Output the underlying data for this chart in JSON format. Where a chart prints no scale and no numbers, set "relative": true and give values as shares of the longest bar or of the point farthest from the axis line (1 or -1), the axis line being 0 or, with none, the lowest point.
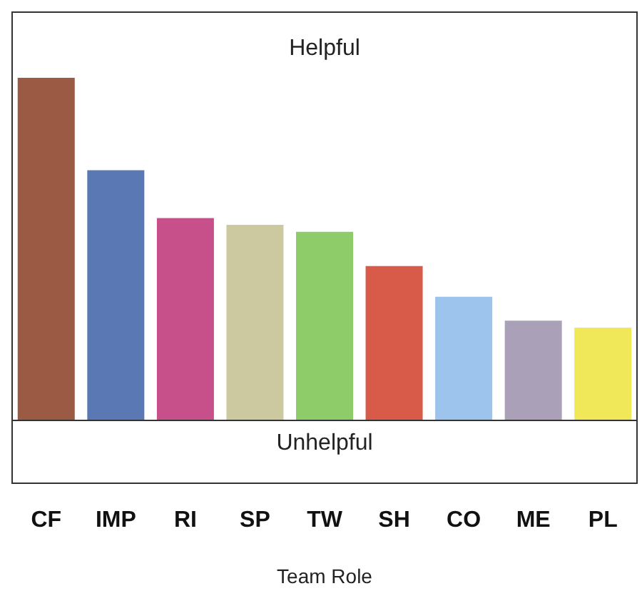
{
  "chart_data": {
    "type": "bar",
    "xlabel": "Team Role",
    "relative": true,
    "grid": false,
    "legend": false,
    "categories": [
      "CF",
      "IMP",
      "RI",
      "SP",
      "TW",
      "SH",
      "CO",
      "ME",
      "PL"
    ],
    "values": [
      1,
      0.73,
      0.59,
      0.57,
      0.55,
      0.45,
      0.36,
      0.29,
      0.27
    ],
    "colors": [
      "#9a5a44",
      "#5a78b4",
      "#c8508a",
      "#ccc8a0",
      "#8ecc6a",
      "#d85a48",
      "#9cc4ec",
      "#aaa0b8",
      "#f0e858"
    ],
    "annotations": [
      "Helpful",
      "Unhelpful"
    ]
  }
}
